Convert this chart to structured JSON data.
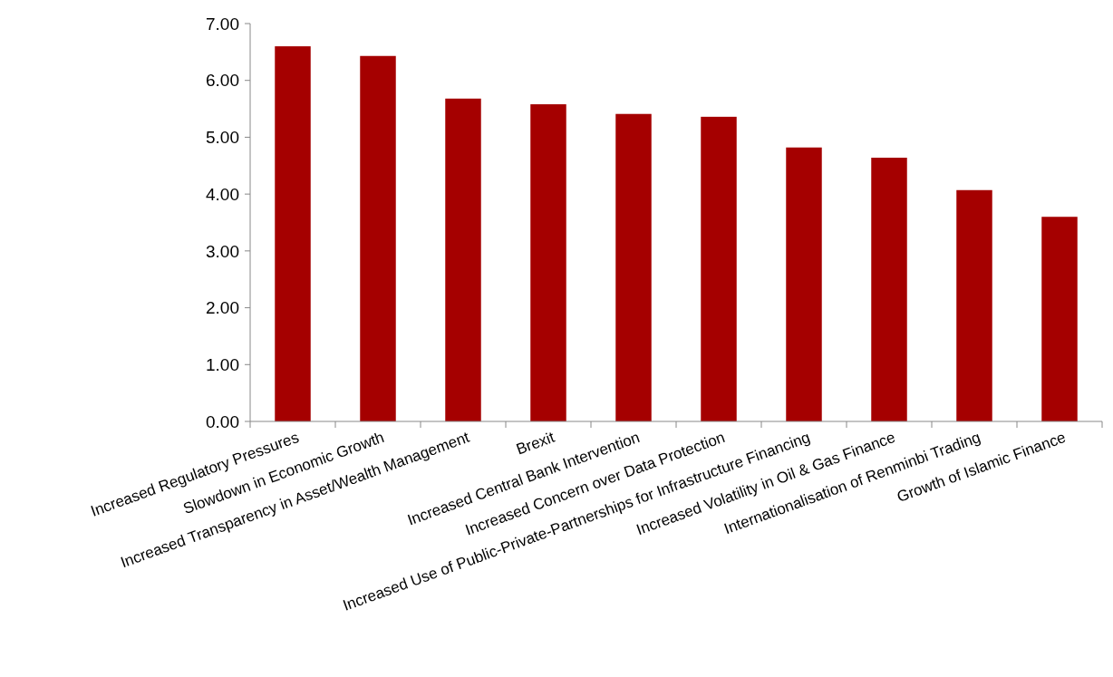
{
  "chart_data": {
    "type": "bar",
    "categories": [
      "Increased Regulatory Pressures",
      "Slowdown in Economic Growth",
      "Increased Transparency in Asset/Wealth Management",
      "Brexit",
      "Increased Central Bank Intervention",
      "Increased Concern over Data Protection",
      "Increased Use of Public-Private-Partnerships for Infrastructure Financing",
      "Increased Volatility in Oil & Gas Finance",
      "Internationalisation of Renminbi Trading",
      "Growth of Islamic Finance"
    ],
    "values": [
      6.6,
      6.43,
      5.68,
      5.58,
      5.41,
      5.36,
      4.82,
      4.64,
      4.07,
      3.6
    ],
    "color": "#a50000",
    "ylim": [
      0,
      7
    ],
    "yticks": [
      {
        "value": 0,
        "label": "0.00"
      },
      {
        "value": 1,
        "label": "1.00"
      },
      {
        "value": 2,
        "label": "2.00"
      },
      {
        "value": 3,
        "label": "3.00"
      },
      {
        "value": 4,
        "label": "4.00"
      },
      {
        "value": 5,
        "label": "5.00"
      },
      {
        "value": 6,
        "label": "6.00"
      },
      {
        "value": 7,
        "label": "7.00"
      }
    ],
    "grid": false
  }
}
